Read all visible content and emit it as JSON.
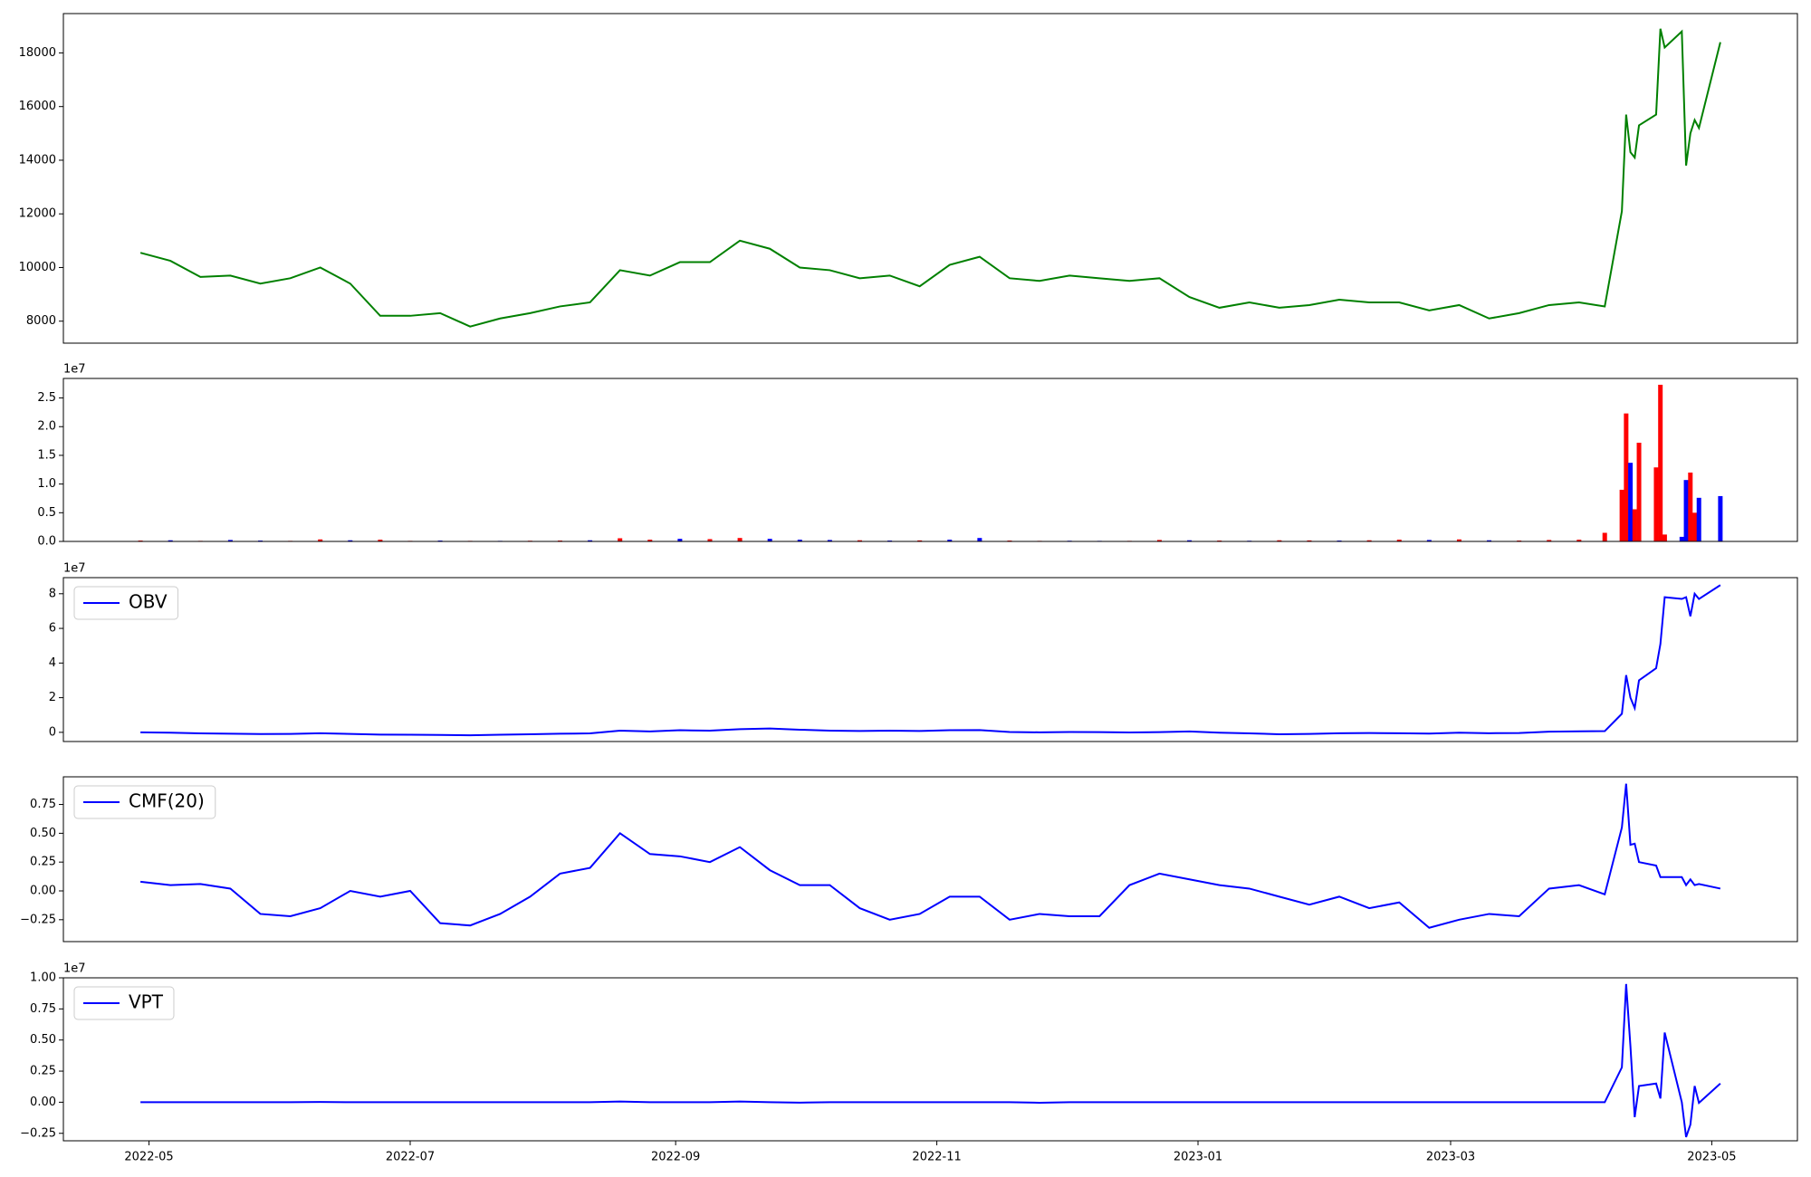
{
  "chart_data": [
    {
      "type": "line",
      "color": "#008000",
      "x": [
        19111,
        19118,
        19125,
        19132,
        19139,
        19146,
        19153,
        19160,
        19167,
        19174,
        19181,
        19188,
        19195,
        19202,
        19209,
        19216,
        19223,
        19230,
        19237,
        19244,
        19251,
        19258,
        19265,
        19272,
        19279,
        19286,
        19293,
        19300,
        19307,
        19314,
        19321,
        19328,
        19335,
        19342,
        19349,
        19356,
        19363,
        19370,
        19377,
        19384,
        19391,
        19398,
        19405,
        19412,
        19419,
        19426,
        19433,
        19440,
        19447,
        19453,
        19457,
        19458,
        19459,
        19460,
        19461,
        19465,
        19466,
        19467,
        19471,
        19472,
        19473,
        19474,
        19475,
        19480
      ],
      "values": [
        10550,
        10250,
        9650,
        9700,
        9400,
        9600,
        10000,
        9400,
        8200,
        8200,
        8300,
        7800,
        8100,
        8300,
        8550,
        8700,
        9900,
        9700,
        10200,
        10200,
        11000,
        10700,
        10000,
        9900,
        9600,
        9700,
        9300,
        10100,
        10400,
        9600,
        9500,
        9700,
        9600,
        9500,
        9600,
        8900,
        8500,
        8700,
        8500,
        8600,
        8800,
        8700,
        8700,
        8400,
        8600,
        8100,
        8300,
        8600,
        8700,
        8550,
        12100,
        15700,
        14300,
        14100,
        15300,
        15700,
        18900,
        18200,
        18800,
        13800,
        15000,
        15500,
        15200,
        18400
      ],
      "xlim": [
        19093,
        19498
      ],
      "ylim": [
        7181,
        19466
      ],
      "yticks": [
        8000,
        10000,
        12000,
        14000,
        16000,
        18000
      ]
    },
    {
      "type": "bar",
      "offset_text": "1e7",
      "x": [
        19111,
        19118,
        19125,
        19132,
        19139,
        19146,
        19153,
        19160,
        19167,
        19174,
        19181,
        19188,
        19195,
        19202,
        19209,
        19216,
        19223,
        19230,
        19237,
        19244,
        19251,
        19258,
        19265,
        19272,
        19279,
        19286,
        19293,
        19300,
        19307,
        19314,
        19321,
        19328,
        19335,
        19342,
        19349,
        19356,
        19363,
        19370,
        19377,
        19384,
        19391,
        19398,
        19405,
        19412,
        19419,
        19426,
        19433,
        19440,
        19447,
        19453,
        19457,
        19458,
        19459,
        19460,
        19461,
        19465,
        19466,
        19467,
        19471,
        19472,
        19473,
        19474,
        19475,
        19480
      ],
      "values": [
        150000,
        200000,
        100000,
        250000,
        150000,
        100000,
        350000,
        200000,
        300000,
        100000,
        150000,
        100000,
        100000,
        120000,
        150000,
        200000,
        550000,
        300000,
        450000,
        400000,
        600000,
        450000,
        300000,
        250000,
        200000,
        150000,
        180000,
        300000,
        600000,
        150000,
        100000,
        120000,
        100000,
        100000,
        250000,
        200000,
        150000,
        120000,
        200000,
        180000,
        150000,
        200000,
        300000,
        250000,
        350000,
        200000,
        150000,
        250000,
        300000,
        1500000,
        9000000,
        22300000,
        13700000,
        5600000,
        17200000,
        12900000,
        27300000,
        1200000,
        800000,
        10700000,
        12000000,
        5000000,
        7600000,
        7900000
      ],
      "bar_colors": [
        "#ff0000",
        "#0000ff",
        "#ff0000",
        "#0000ff",
        "#0000ff",
        "#ff0000",
        "#ff0000",
        "#0000ff",
        "#ff0000",
        "#ff0000",
        "#0000ff",
        "#ff0000",
        "#0000ff",
        "#ff0000",
        "#ff0000",
        "#0000ff",
        "#ff0000",
        "#ff0000",
        "#0000ff",
        "#ff0000",
        "#ff0000",
        "#0000ff",
        "#0000ff",
        "#0000ff",
        "#ff0000",
        "#0000ff",
        "#ff0000",
        "#0000ff",
        "#0000ff",
        "#ff0000",
        "#ff0000",
        "#0000ff",
        "#0000ff",
        "#ff0000",
        "#ff0000",
        "#0000ff",
        "#ff0000",
        "#0000ff",
        "#ff0000",
        "#ff0000",
        "#0000ff",
        "#ff0000",
        "#ff0000",
        "#0000ff",
        "#ff0000",
        "#0000ff",
        "#ff0000",
        "#ff0000",
        "#ff0000",
        "#ff0000",
        "#ff0000",
        "#ff0000",
        "#0000ff",
        "#ff0000",
        "#ff0000",
        "#ff0000",
        "#ff0000",
        "#ff0000",
        "#0000ff",
        "#0000ff",
        "#ff0000",
        "#ff0000",
        "#0000ff",
        "#0000ff"
      ],
      "xlim": [
        19093,
        19498
      ],
      "ylim": [
        0,
        28400000
      ],
      "yticks": [
        {
          "value": 0,
          "label": "0.0"
        },
        {
          "value": 5000000,
          "label": "0.5"
        },
        {
          "value": 10000000,
          "label": "1.0"
        },
        {
          "value": 15000000,
          "label": "1.5"
        },
        {
          "value": 20000000,
          "label": "2.0"
        },
        {
          "value": 25000000,
          "label": "2.5"
        }
      ]
    },
    {
      "type": "line",
      "offset_text": "1e7",
      "x": [
        19111,
        19118,
        19125,
        19132,
        19139,
        19146,
        19153,
        19160,
        19167,
        19174,
        19181,
        19188,
        19195,
        19202,
        19209,
        19216,
        19223,
        19230,
        19237,
        19244,
        19251,
        19258,
        19265,
        19272,
        19279,
        19286,
        19293,
        19300,
        19307,
        19314,
        19321,
        19328,
        19335,
        19342,
        19349,
        19356,
        19363,
        19370,
        19377,
        19384,
        19391,
        19398,
        19405,
        19412,
        19419,
        19426,
        19433,
        19440,
        19447,
        19453,
        19457,
        19458,
        19459,
        19460,
        19461,
        19465,
        19466,
        19467,
        19471,
        19472,
        19473,
        19474,
        19475,
        19480
      ],
      "series": [
        {
          "name": "OBV",
          "color": "#0000ff",
          "values": [
            0,
            -200000,
            -600000,
            -800000,
            -1000000,
            -900000,
            -500000,
            -900000,
            -1300000,
            -1400000,
            -1500000,
            -1700000,
            -1400000,
            -1100000,
            -800000,
            -600000,
            1000000,
            500000,
            1200000,
            1000000,
            1800000,
            2200000,
            1500000,
            1000000,
            800000,
            1000000,
            800000,
            1200000,
            1300000,
            200000,
            0,
            200000,
            100000,
            -100000,
            100000,
            500000,
            -200000,
            -600000,
            -1100000,
            -900000,
            -500000,
            -400000,
            -500000,
            -700000,
            -200000,
            -500000,
            -400000,
            400000,
            600000,
            700000,
            10700000,
            33000000,
            20000000,
            14000000,
            30000000,
            37000000,
            51000000,
            78000000,
            77000000,
            78000000,
            67000000,
            80000000,
            77000000,
            85000000
          ]
        }
      ],
      "xlim": [
        19093,
        19498
      ],
      "ylim": [
        -5300000,
        89300000
      ],
      "yticks": [
        {
          "value": 0,
          "label": "0"
        },
        {
          "value": 20000000,
          "label": "2"
        },
        {
          "value": 40000000,
          "label": "4"
        },
        {
          "value": 60000000,
          "label": "6"
        },
        {
          "value": 80000000,
          "label": "8"
        }
      ]
    },
    {
      "type": "line",
      "x": [
        19111,
        19118,
        19125,
        19132,
        19139,
        19146,
        19153,
        19160,
        19167,
        19174,
        19181,
        19188,
        19195,
        19202,
        19209,
        19216,
        19223,
        19230,
        19237,
        19244,
        19251,
        19258,
        19265,
        19272,
        19279,
        19286,
        19293,
        19300,
        19307,
        19314,
        19321,
        19328,
        19335,
        19342,
        19349,
        19356,
        19363,
        19370,
        19377,
        19384,
        19391,
        19398,
        19405,
        19412,
        19419,
        19426,
        19433,
        19440,
        19447,
        19453,
        19457,
        19458,
        19459,
        19460,
        19461,
        19465,
        19466,
        19467,
        19471,
        19472,
        19473,
        19474,
        19475,
        19480
      ],
      "series": [
        {
          "name": "CMF(20)",
          "color": "#0000ff",
          "values": [
            0.08,
            0.05,
            0.06,
            0.02,
            -0.2,
            -0.22,
            -0.15,
            0.0,
            -0.05,
            0.0,
            -0.28,
            -0.3,
            -0.2,
            -0.05,
            0.15,
            0.2,
            0.5,
            0.32,
            0.3,
            0.25,
            0.38,
            0.18,
            0.05,
            0.05,
            -0.15,
            -0.25,
            -0.2,
            -0.05,
            -0.05,
            -0.25,
            -0.2,
            -0.22,
            -0.22,
            0.05,
            0.15,
            0.1,
            0.05,
            0.02,
            -0.05,
            -0.12,
            -0.05,
            -0.15,
            -0.1,
            -0.32,
            -0.25,
            -0.2,
            -0.22,
            0.02,
            0.05,
            -0.03,
            0.55,
            0.93,
            0.4,
            0.41,
            0.25,
            0.22,
            0.12,
            0.12,
            0.12,
            0.05,
            0.1,
            0.05,
            0.06,
            0.02
          ]
        }
      ],
      "xlim": [
        19093,
        19498
      ],
      "ylim": [
        -0.44,
        0.99
      ],
      "yticks": [
        {
          "value": -0.25,
          "label": "−0.25"
        },
        {
          "value": 0,
          "label": "0.00"
        },
        {
          "value": 0.25,
          "label": "0.25"
        },
        {
          "value": 0.5,
          "label": "0.50"
        },
        {
          "value": 0.75,
          "label": "0.75"
        }
      ]
    },
    {
      "type": "line",
      "offset_text": "1e7",
      "x": [
        19111,
        19118,
        19125,
        19132,
        19139,
        19146,
        19153,
        19160,
        19167,
        19174,
        19181,
        19188,
        19195,
        19202,
        19209,
        19216,
        19223,
        19230,
        19237,
        19244,
        19251,
        19258,
        19265,
        19272,
        19279,
        19286,
        19293,
        19300,
        19307,
        19314,
        19321,
        19328,
        19335,
        19342,
        19349,
        19356,
        19363,
        19370,
        19377,
        19384,
        19391,
        19398,
        19405,
        19412,
        19419,
        19426,
        19433,
        19440,
        19447,
        19453,
        19457,
        19458,
        19459,
        19460,
        19461,
        19465,
        19466,
        19467,
        19471,
        19472,
        19473,
        19474,
        19475,
        19480
      ],
      "series": [
        {
          "name": "VPT",
          "color": "#0000ff",
          "values": [
            0,
            0,
            0,
            0,
            0,
            0,
            20000,
            0,
            0,
            0,
            0,
            0,
            0,
            0,
            0,
            0,
            60000,
            0,
            0,
            0,
            60000,
            0,
            -30000,
            0,
            0,
            0,
            0,
            0,
            0,
            0,
            -40000,
            0,
            0,
            0,
            0,
            0,
            0,
            0,
            0,
            0,
            0,
            0,
            0,
            0,
            0,
            0,
            0,
            0,
            0,
            0,
            2800000,
            9500000,
            4500000,
            -1200000,
            1300000,
            1500000,
            300000,
            5600000,
            0,
            -2800000,
            -1800000,
            1300000,
            -50000,
            1500000
          ]
        }
      ],
      "xlim": [
        19093,
        19498
      ],
      "ylim": [
        -3100000,
        10000000
      ],
      "yticks": [
        {
          "value": -2500000,
          "label": "−0.25"
        },
        {
          "value": 0,
          "label": "0.00"
        },
        {
          "value": 2500000,
          "label": "0.25"
        },
        {
          "value": 5000000,
          "label": "0.50"
        },
        {
          "value": 7500000,
          "label": "0.75"
        },
        {
          "value": 10000000,
          "label": "1.00"
        }
      ],
      "xticks": [
        {
          "value": 19113,
          "label": "2022-05"
        },
        {
          "value": 19174,
          "label": "2022-07"
        },
        {
          "value": 19236,
          "label": "2022-09"
        },
        {
          "value": 19297,
          "label": "2022-11"
        },
        {
          "value": 19358,
          "label": "2023-01"
        },
        {
          "value": 19417,
          "label": "2023-03"
        },
        {
          "value": 19478,
          "label": "2023-05"
        }
      ]
    }
  ]
}
